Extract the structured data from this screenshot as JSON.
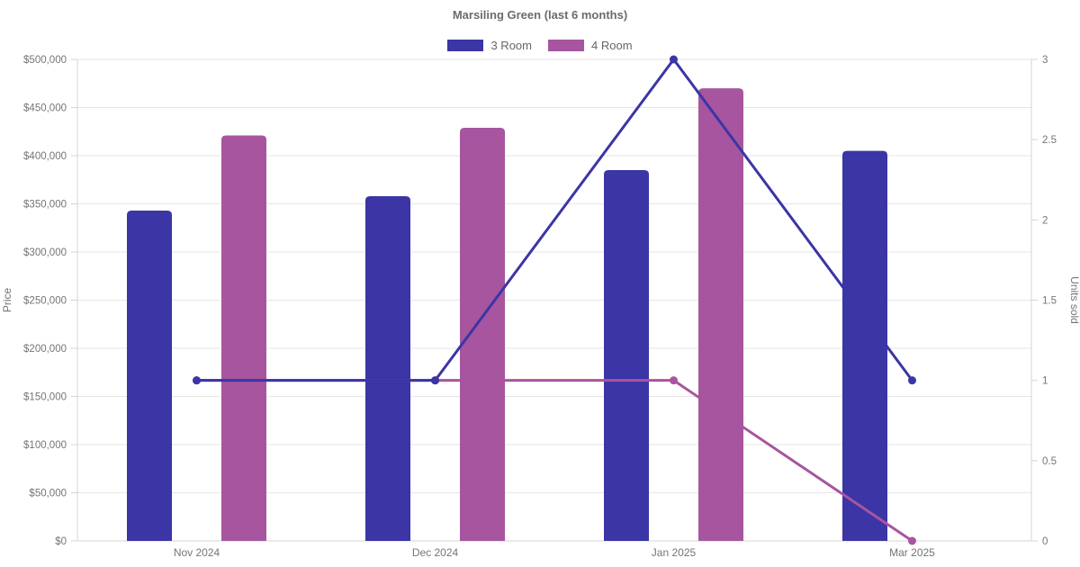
{
  "title": "Marsiling Green (last 6 months)",
  "legend": [
    {
      "label": "3 Room",
      "color": "#3b35a6"
    },
    {
      "label": "4 Room",
      "color": "#a7559f"
    }
  ],
  "colors": {
    "grid": "#e6e6e6",
    "axis": "#d4d4d4",
    "tick_text": "#757575",
    "blue": "#3b35a6",
    "purple": "#a7559f"
  },
  "chart_data": {
    "type": "bar",
    "subtype": "combo bar+line, dual axis",
    "title": "Marsiling Green (last 6 months)",
    "categories": [
      "Nov 2024",
      "Dec 2024",
      "Jan 2025",
      "Mar 2025"
    ],
    "series": [
      {
        "name": "3 Room",
        "type": "bar",
        "axis": "left",
        "color": "#3b35a6",
        "values": [
          343000,
          358000,
          385000,
          405000
        ]
      },
      {
        "name": "4 Room",
        "type": "bar",
        "axis": "left",
        "color": "#a7559f",
        "values": [
          421000,
          429000,
          470000,
          null
        ]
      },
      {
        "name": "3 Room",
        "type": "line",
        "axis": "right",
        "color": "#3b35a6",
        "values": [
          1,
          1,
          3,
          1
        ]
      },
      {
        "name": "4 Room",
        "type": "line",
        "axis": "right",
        "color": "#a7559f",
        "values": [
          1,
          1,
          1,
          0
        ]
      }
    ],
    "left_axis": {
      "label": "Price",
      "min": 0,
      "max": 500000,
      "step": 50000,
      "tick_labels": [
        "$0",
        "$50,000",
        "$100,000",
        "$150,000",
        "$200,000",
        "$250,000",
        "$300,000",
        "$350,000",
        "$400,000",
        "$450,000",
        "$500,000"
      ]
    },
    "right_axis": {
      "label": "Units sold",
      "min": 0,
      "max": 3,
      "step": 0.5,
      "tick_labels": [
        "0",
        "0.5",
        "1",
        "1.5",
        "2",
        "2.5",
        "3"
      ]
    },
    "grid": "horizontal",
    "legend_position": "top"
  }
}
